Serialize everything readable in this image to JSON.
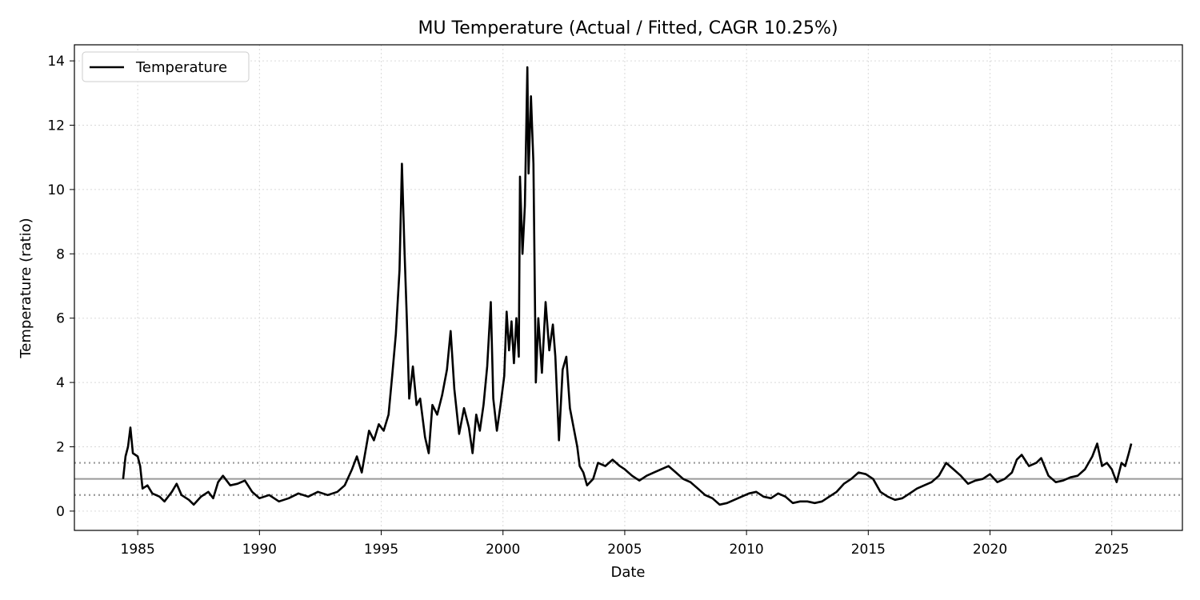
{
  "chart_data": {
    "type": "line",
    "title": "MU Temperature (Actual / Fitted, CAGR 10.25%)",
    "xlabel": "Date",
    "ylabel": "Temperature (ratio)",
    "xlim": [
      1982.4,
      2027.9
    ],
    "ylim": [
      -0.6,
      14.5
    ],
    "x_ticks": [
      1985,
      1990,
      1995,
      2000,
      2005,
      2010,
      2015,
      2020,
      2025
    ],
    "x_tick_labels": [
      "1985",
      "1990",
      "1995",
      "2000",
      "2005",
      "2010",
      "2015",
      "2020",
      "2025"
    ],
    "y_ticks": [
      0,
      2,
      4,
      6,
      8,
      10,
      12,
      14
    ],
    "y_tick_labels": [
      "0",
      "2",
      "4",
      "6",
      "8",
      "10",
      "12",
      "14"
    ],
    "grid": true,
    "legend": {
      "position": "top-left",
      "entries": [
        "Temperature"
      ]
    },
    "reference_lines": [
      {
        "y": 1.0,
        "style": "solid",
        "color": "#999999"
      },
      {
        "y": 1.5,
        "style": "dotted",
        "color": "#999999"
      },
      {
        "y": 0.5,
        "style": "dotted",
        "color": "#999999"
      }
    ],
    "series": [
      {
        "name": "Temperature",
        "color": "#000000",
        "points": [
          [
            1984.4,
            1.0
          ],
          [
            1984.5,
            1.7
          ],
          [
            1984.6,
            2.0
          ],
          [
            1984.7,
            2.6
          ],
          [
            1984.8,
            1.8
          ],
          [
            1985.0,
            1.7
          ],
          [
            1985.1,
            1.4
          ],
          [
            1985.2,
            0.7
          ],
          [
            1985.4,
            0.8
          ],
          [
            1985.6,
            0.55
          ],
          [
            1985.9,
            0.45
          ],
          [
            1986.1,
            0.3
          ],
          [
            1986.4,
            0.6
          ],
          [
            1986.6,
            0.85
          ],
          [
            1986.8,
            0.5
          ],
          [
            1987.1,
            0.35
          ],
          [
            1987.3,
            0.2
          ],
          [
            1987.6,
            0.45
          ],
          [
            1987.9,
            0.6
          ],
          [
            1988.1,
            0.4
          ],
          [
            1988.3,
            0.9
          ],
          [
            1988.5,
            1.1
          ],
          [
            1988.8,
            0.8
          ],
          [
            1989.1,
            0.85
          ],
          [
            1989.4,
            0.95
          ],
          [
            1989.7,
            0.6
          ],
          [
            1990.0,
            0.4
          ],
          [
            1990.4,
            0.5
          ],
          [
            1990.8,
            0.3
          ],
          [
            1991.2,
            0.4
          ],
          [
            1991.6,
            0.55
          ],
          [
            1992.0,
            0.45
          ],
          [
            1992.4,
            0.6
          ],
          [
            1992.8,
            0.5
          ],
          [
            1993.2,
            0.6
          ],
          [
            1993.5,
            0.8
          ],
          [
            1993.8,
            1.3
          ],
          [
            1994.0,
            1.7
          ],
          [
            1994.2,
            1.2
          ],
          [
            1994.5,
            2.5
          ],
          [
            1994.7,
            2.2
          ],
          [
            1994.9,
            2.7
          ],
          [
            1995.1,
            2.5
          ],
          [
            1995.3,
            3.0
          ],
          [
            1995.45,
            4.2
          ],
          [
            1995.6,
            5.5
          ],
          [
            1995.75,
            7.5
          ],
          [
            1995.85,
            10.8
          ],
          [
            1995.95,
            8.2
          ],
          [
            1996.05,
            6.0
          ],
          [
            1996.15,
            3.5
          ],
          [
            1996.3,
            4.5
          ],
          [
            1996.45,
            3.3
          ],
          [
            1996.6,
            3.5
          ],
          [
            1996.8,
            2.3
          ],
          [
            1996.95,
            1.8
          ],
          [
            1997.1,
            3.3
          ],
          [
            1997.3,
            3.0
          ],
          [
            1997.5,
            3.6
          ],
          [
            1997.7,
            4.4
          ],
          [
            1997.85,
            5.6
          ],
          [
            1998.0,
            3.8
          ],
          [
            1998.2,
            2.4
          ],
          [
            1998.4,
            3.2
          ],
          [
            1998.6,
            2.6
          ],
          [
            1998.75,
            1.8
          ],
          [
            1998.9,
            3.0
          ],
          [
            1999.05,
            2.5
          ],
          [
            1999.2,
            3.3
          ],
          [
            1999.35,
            4.5
          ],
          [
            1999.5,
            6.5
          ],
          [
            1999.6,
            3.5
          ],
          [
            1999.75,
            2.5
          ],
          [
            1999.9,
            3.3
          ],
          [
            2000.05,
            4.2
          ],
          [
            2000.15,
            6.2
          ],
          [
            2000.25,
            5.0
          ],
          [
            2000.35,
            5.9
          ],
          [
            2000.45,
            4.6
          ],
          [
            2000.55,
            6.0
          ],
          [
            2000.65,
            4.8
          ],
          [
            2000.7,
            10.4
          ],
          [
            2000.8,
            8.0
          ],
          [
            2000.9,
            9.5
          ],
          [
            2001.0,
            13.8
          ],
          [
            2001.05,
            10.5
          ],
          [
            2001.15,
            12.9
          ],
          [
            2001.25,
            10.8
          ],
          [
            2001.35,
            4.0
          ],
          [
            2001.45,
            6.0
          ],
          [
            2001.6,
            4.3
          ],
          [
            2001.75,
            6.5
          ],
          [
            2001.9,
            5.0
          ],
          [
            2002.05,
            5.8
          ],
          [
            2002.15,
            4.8
          ],
          [
            2002.3,
            2.2
          ],
          [
            2002.45,
            4.4
          ],
          [
            2002.6,
            4.8
          ],
          [
            2002.75,
            3.2
          ],
          [
            2002.9,
            2.6
          ],
          [
            2003.05,
            2.0
          ],
          [
            2003.15,
            1.4
          ],
          [
            2003.3,
            1.2
          ],
          [
            2003.45,
            0.8
          ],
          [
            2003.7,
            1.0
          ],
          [
            2003.9,
            1.5
          ],
          [
            2004.2,
            1.4
          ],
          [
            2004.5,
            1.6
          ],
          [
            2004.8,
            1.4
          ],
          [
            2005.0,
            1.3
          ],
          [
            2005.3,
            1.1
          ],
          [
            2005.6,
            0.95
          ],
          [
            2005.9,
            1.1
          ],
          [
            2006.2,
            1.2
          ],
          [
            2006.5,
            1.3
          ],
          [
            2006.8,
            1.4
          ],
          [
            2007.1,
            1.2
          ],
          [
            2007.4,
            1.0
          ],
          [
            2007.7,
            0.9
          ],
          [
            2008.0,
            0.7
          ],
          [
            2008.3,
            0.5
          ],
          [
            2008.6,
            0.4
          ],
          [
            2008.9,
            0.2
          ],
          [
            2009.2,
            0.25
          ],
          [
            2009.5,
            0.35
          ],
          [
            2009.8,
            0.45
          ],
          [
            2010.1,
            0.55
          ],
          [
            2010.4,
            0.6
          ],
          [
            2010.7,
            0.45
          ],
          [
            2011.0,
            0.4
          ],
          [
            2011.3,
            0.55
          ],
          [
            2011.6,
            0.45
          ],
          [
            2011.9,
            0.25
          ],
          [
            2012.2,
            0.3
          ],
          [
            2012.5,
            0.3
          ],
          [
            2012.8,
            0.25
          ],
          [
            2013.1,
            0.3
          ],
          [
            2013.4,
            0.45
          ],
          [
            2013.7,
            0.6
          ],
          [
            2014.0,
            0.85
          ],
          [
            2014.3,
            1.0
          ],
          [
            2014.6,
            1.2
          ],
          [
            2014.9,
            1.15
          ],
          [
            2015.2,
            1.0
          ],
          [
            2015.5,
            0.6
          ],
          [
            2015.8,
            0.45
          ],
          [
            2016.1,
            0.35
          ],
          [
            2016.4,
            0.4
          ],
          [
            2016.7,
            0.55
          ],
          [
            2017.0,
            0.7
          ],
          [
            2017.3,
            0.8
          ],
          [
            2017.6,
            0.9
          ],
          [
            2017.9,
            1.1
          ],
          [
            2018.2,
            1.5
          ],
          [
            2018.5,
            1.3
          ],
          [
            2018.8,
            1.1
          ],
          [
            2019.1,
            0.85
          ],
          [
            2019.4,
            0.95
          ],
          [
            2019.7,
            1.0
          ],
          [
            2020.0,
            1.15
          ],
          [
            2020.3,
            0.9
          ],
          [
            2020.6,
            1.0
          ],
          [
            2020.9,
            1.2
          ],
          [
            2021.1,
            1.6
          ],
          [
            2021.3,
            1.75
          ],
          [
            2021.6,
            1.4
          ],
          [
            2021.9,
            1.5
          ],
          [
            2022.1,
            1.65
          ],
          [
            2022.4,
            1.1
          ],
          [
            2022.7,
            0.9
          ],
          [
            2023.0,
            0.95
          ],
          [
            2023.3,
            1.05
          ],
          [
            2023.6,
            1.1
          ],
          [
            2023.9,
            1.3
          ],
          [
            2024.2,
            1.7
          ],
          [
            2024.4,
            2.1
          ],
          [
            2024.6,
            1.4
          ],
          [
            2024.8,
            1.5
          ],
          [
            2025.0,
            1.3
          ],
          [
            2025.2,
            0.9
          ],
          [
            2025.4,
            1.5
          ],
          [
            2025.55,
            1.4
          ],
          [
            2025.7,
            1.8
          ],
          [
            2025.8,
            2.1
          ]
        ]
      }
    ]
  }
}
